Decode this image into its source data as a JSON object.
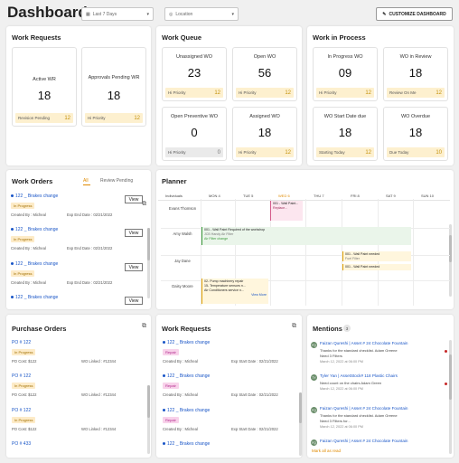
{
  "header": {
    "title": "Dashboard",
    "date_filter": "Last 7 Days",
    "location_placeholder": "Location",
    "customize_label": "CUSTOMIZE DASHBOARD"
  },
  "work_requests_summary": {
    "title": "Work Requests",
    "cards": [
      {
        "label": "Active WR",
        "value": "18",
        "footer_label": "Revision Pending",
        "footer_value": "12"
      },
      {
        "label": "Approvals Pending WR",
        "value": "18",
        "footer_label": "Hi Priority",
        "footer_value": "12"
      }
    ]
  },
  "work_queue": {
    "title": "Work Queue",
    "cards": [
      {
        "label": "Unassigned WO",
        "value": "23",
        "footer_label": "Hi Priority",
        "footer_value": "12"
      },
      {
        "label": "Open WO",
        "value": "56",
        "footer_label": "Hi Priority",
        "footer_value": "12"
      },
      {
        "label": "Open Preventive WO",
        "value": "0",
        "footer_label": "Hi Priority",
        "footer_value": "0"
      },
      {
        "label": "Assigned WO",
        "value": "18",
        "footer_label": "Hi Priority",
        "footer_value": "12"
      }
    ]
  },
  "work_in_process": {
    "title": "Work in Process",
    "cards": [
      {
        "label": "In Progress WO",
        "value": "09",
        "footer_label": "Hi Priority",
        "footer_value": "12"
      },
      {
        "label": "WO in Review",
        "value": "18",
        "footer_label": "Review On Me",
        "footer_value": "12"
      },
      {
        "label": "WO Start Date due",
        "value": "18",
        "footer_label": "Starting Today",
        "footer_value": "12"
      },
      {
        "label": "WO Overdue",
        "value": "18",
        "footer_label": "Due Today",
        "footer_value": "10"
      }
    ]
  },
  "work_orders": {
    "title": "Work Orders",
    "tab_all": "All",
    "tab_review": "Review Pending",
    "view_label": "View",
    "items": [
      {
        "name": "122 _ Brakes change",
        "status": "In Progress",
        "created": "Created By : Micheal",
        "due": "Exp End Date : 02/21/2022"
      },
      {
        "name": "122 _ Brakes change",
        "status": "In Progress",
        "created": "Created By : Micheal",
        "due": "Exp End Date : 02/21/2022"
      },
      {
        "name": "122 _ Brakes change",
        "status": "In Progress",
        "created": "Created By : Micheal",
        "due": "Exp End Date : 02/21/2022"
      },
      {
        "name": "122 _ Brakes change",
        "status": "",
        "created": "",
        "due": ""
      }
    ]
  },
  "planner": {
    "title": "Planner",
    "individuals_label": "Individuals",
    "days": [
      "MON 4",
      "TUE 5",
      "WED 6",
      "THU 7",
      "FRI 8",
      "SAT 9",
      "SUN 10"
    ],
    "people": [
      "Evans Thomson",
      "Amy Walsh",
      "Jay Dane",
      "Daisy Moore"
    ],
    "events": {
      "e1": "001 - Wall Paint...",
      "e1b": "Replace...",
      "e2": "001 - Wall Paint Required of the workshop",
      "e2b": "JCB Handy Air Filter",
      "e2c": "Air Filter change",
      "e3": "001 - Wall Paint needed",
      "e3b": "Fuel Filter",
      "e4": "001 - Wall Paint needed",
      "e5": "02- Pump machinery repair",
      "e6": "15- Temperature sensors n...",
      "e7": "Air Conditioners service n...",
      "more": "View More"
    }
  },
  "purchase_orders": {
    "title": "Purchase Orders",
    "items": [
      {
        "po": "PO # 122",
        "status": "In Progress",
        "cost": "PO Cost: $122",
        "linked": "WO Linked : #12344"
      },
      {
        "po": "PO # 122",
        "status": "In Progress",
        "cost": "PO Cost: $122",
        "linked": "WO Linked : #12344"
      },
      {
        "po": "PO # 122",
        "status": "In Progress",
        "cost": "PO Cost: $122",
        "linked": "WO Linked : #12344"
      },
      {
        "po": "PO # 433",
        "status": "",
        "cost": "",
        "linked": ""
      }
    ]
  },
  "work_requests_list": {
    "title": "Work Requests",
    "items": [
      {
        "name": "122 _ Brakes change",
        "status": "Repair",
        "created": "Created By : Micheal",
        "start": "Exp Start Date : 02/21/2022"
      },
      {
        "name": "122 _ Brakes change",
        "status": "Repair",
        "created": "Created By : Micheal",
        "start": "Exp Start Date : 02/21/2022"
      },
      {
        "name": "122 _ Brakes change",
        "status": "Repair",
        "created": "Created By : Micheal",
        "start": "Exp Start Date : 02/21/2022"
      },
      {
        "name": "122 _ Brakes change",
        "status": "",
        "created": "",
        "start": ""
      }
    ]
  },
  "mentions": {
    "title": "Mentions",
    "count": "3",
    "items": [
      {
        "initials": "FQ",
        "title": "Faizan Qureshi | Asset # 24 Chocolate Fountain",
        "line1": "Thanks for the standard checklist. Adam Greene",
        "line2": "Need 3 Filters",
        "time": "March 12, 2022 at 06:00 PM"
      },
      {
        "initials": "TY",
        "title": "Tyler Yan | AssetStock# 118 Plastic Chairs",
        "line1": "Need count on the chairs Adam Green",
        "line2": "",
        "time": "March 12, 2022 at 06:00 PM"
      },
      {
        "initials": "FQ",
        "title": "Faizan Qureshi | Asset # 24 Chocolate Fountain",
        "line1": "Thanks for the standard checklist. Adam Greene",
        "line2": "Need 3 Filters for...",
        "time": "March 12, 2022 at 06:00 PM"
      },
      {
        "initials": "FQ",
        "title": "Faizan Qureshi | Asset # 24 Chocolate Fountain",
        "line1": "",
        "line2": "",
        "time": ""
      }
    ],
    "mark_all": "Mark all as read"
  }
}
